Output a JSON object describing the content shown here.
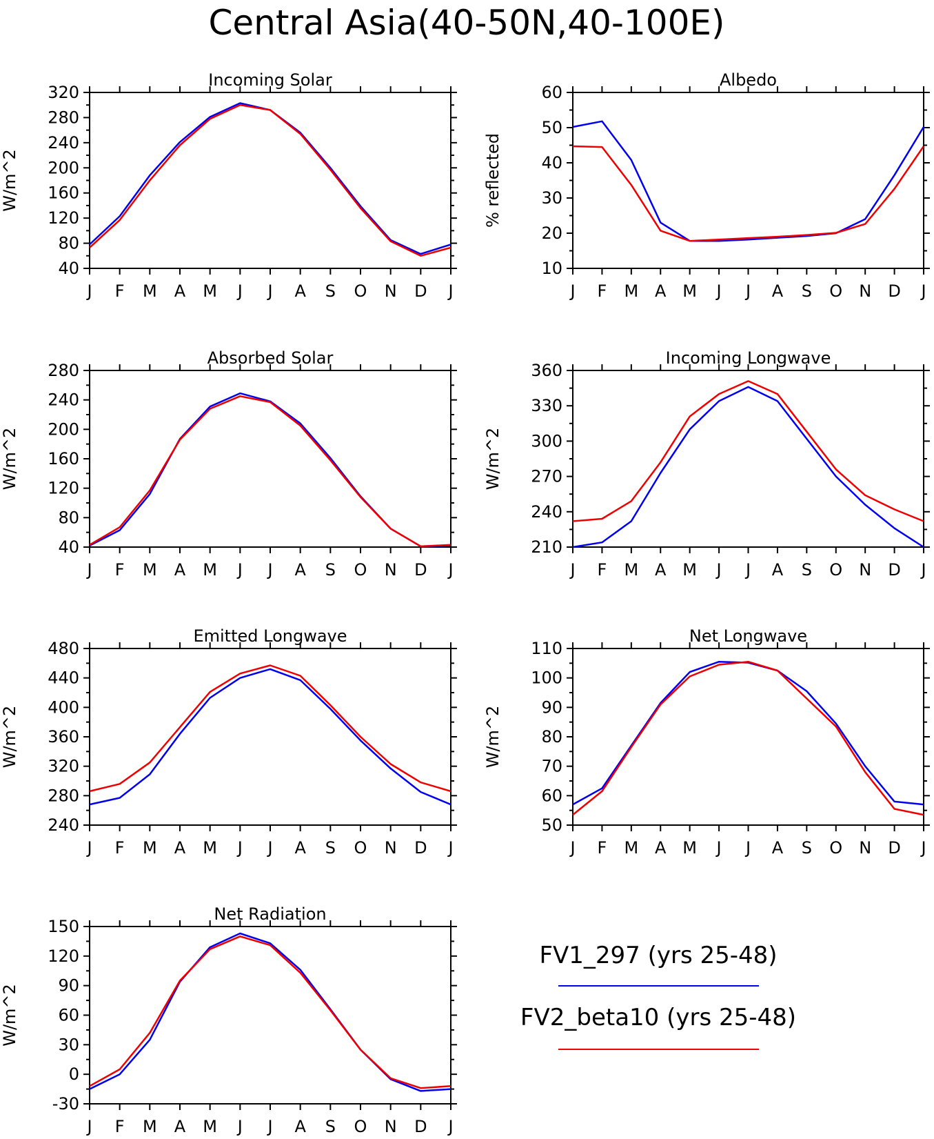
{
  "figure": {
    "title": "Central Asia(40-50N,40-100E)",
    "month_labels": [
      "J",
      "F",
      "M",
      "A",
      "M",
      "J",
      "J",
      "A",
      "S",
      "O",
      "N",
      "D",
      "J"
    ],
    "colors": {
      "FV1_297": "#0000ee",
      "FV2_beta10": "#ee0000"
    }
  },
  "legend": {
    "entries": [
      {
        "label": "FV1_297 (yrs 25-48)",
        "color": "#0000ee"
      },
      {
        "label": "FV2_beta10 (yrs 25-48)",
        "color": "#ee0000"
      }
    ]
  },
  "chart_data": [
    {
      "type": "line",
      "title": "Incoming Solar",
      "ylabel": "W/m^2",
      "ylim": [
        40,
        320
      ],
      "yticks": [
        40,
        80,
        120,
        160,
        200,
        240,
        280,
        320
      ],
      "categories": [
        "J",
        "F",
        "M",
        "A",
        "M",
        "J",
        "J",
        "A",
        "S",
        "O",
        "N",
        "D",
        "J"
      ],
      "series": [
        {
          "name": "FV1_297 (yrs 25-48)",
          "color": "#0000ee",
          "values": [
            78,
            123,
            188,
            241,
            281,
            303,
            292,
            256,
            200,
            139,
            85,
            63,
            78
          ]
        },
        {
          "name": "FV2_beta10 (yrs 25-48)",
          "color": "#ee0000",
          "values": [
            73,
            117,
            180,
            236,
            278,
            300,
            292,
            254,
            197,
            136,
            83,
            60,
            73
          ]
        }
      ]
    },
    {
      "type": "line",
      "title": "Albedo",
      "ylabel": "% reflected",
      "ylim": [
        10,
        60
      ],
      "yticks": [
        10,
        20,
        30,
        40,
        50,
        60
      ],
      "categories": [
        "J",
        "F",
        "M",
        "A",
        "M",
        "J",
        "J",
        "A",
        "S",
        "O",
        "N",
        "D",
        "J"
      ],
      "series": [
        {
          "name": "FV1_297 (yrs 25-48)",
          "color": "#0000ee",
          "values": [
            50.2,
            51.8,
            40.8,
            23.0,
            17.8,
            17.8,
            18.2,
            18.7,
            19.2,
            20.0,
            24.0,
            36.5,
            50.2
          ]
        },
        {
          "name": "FV2_beta10 (yrs 25-48)",
          "color": "#ee0000",
          "values": [
            44.7,
            44.5,
            33.7,
            20.7,
            17.8,
            18.2,
            18.6,
            19.0,
            19.5,
            20.1,
            22.6,
            32.6,
            44.7
          ]
        }
      ]
    },
    {
      "type": "line",
      "title": "Absorbed Solar",
      "ylabel": "W/m^2",
      "ylim": [
        40,
        280
      ],
      "yticks": [
        40,
        80,
        120,
        160,
        200,
        240,
        280
      ],
      "categories": [
        "J",
        "F",
        "M",
        "A",
        "M",
        "J",
        "J",
        "A",
        "S",
        "O",
        "N",
        "D",
        "J"
      ],
      "series": [
        {
          "name": "FV1_297 (yrs 25-48)",
          "color": "#0000ee",
          "values": [
            42,
            63,
            112,
            187,
            231,
            249,
            238,
            208,
            161,
            109,
            65,
            41,
            42
          ]
        },
        {
          "name": "FV2_beta10 (yrs 25-48)",
          "color": "#ee0000",
          "values": [
            43,
            67,
            117,
            186,
            228,
            245,
            237,
            205,
            158,
            108,
            65,
            41,
            43
          ]
        }
      ]
    },
    {
      "type": "line",
      "title": "Incoming Longwave",
      "ylabel": "W/m^2",
      "ylim": [
        210,
        360
      ],
      "yticks": [
        210,
        240,
        270,
        300,
        330,
        360
      ],
      "categories": [
        "J",
        "F",
        "M",
        "A",
        "M",
        "J",
        "J",
        "A",
        "S",
        "O",
        "N",
        "D",
        "J"
      ],
      "series": [
        {
          "name": "FV1_297 (yrs 25-48)",
          "color": "#0000ee",
          "values": [
            210,
            214,
            232,
            273,
            310,
            334,
            346,
            334,
            302,
            270,
            246,
            226,
            210
          ]
        },
        {
          "name": "FV2_beta10 (yrs 25-48)",
          "color": "#ee0000",
          "values": [
            232,
            234,
            249,
            282,
            321,
            340,
            351,
            340,
            308,
            276,
            254,
            242,
            232
          ]
        }
      ]
    },
    {
      "type": "line",
      "title": "Emitted Longwave",
      "ylabel": "W/m^2",
      "ylim": [
        240,
        480
      ],
      "yticks": [
        240,
        280,
        320,
        360,
        400,
        440,
        480
      ],
      "categories": [
        "J",
        "F",
        "M",
        "A",
        "M",
        "J",
        "J",
        "A",
        "S",
        "O",
        "N",
        "D",
        "J"
      ],
      "series": [
        {
          "name": "FV1_297 (yrs 25-48)",
          "color": "#0000ee",
          "values": [
            268,
            277,
            309,
            364,
            413,
            440,
            452,
            437,
            398,
            355,
            317,
            285,
            268
          ]
        },
        {
          "name": "FV2_beta10 (yrs 25-48)",
          "color": "#ee0000",
          "values": [
            286,
            296,
            325,
            373,
            421,
            446,
            457,
            443,
            403,
            360,
            323,
            298,
            286
          ]
        }
      ]
    },
    {
      "type": "line",
      "title": "Net Longwave",
      "ylabel": "W/m^2",
      "ylim": [
        50,
        110
      ],
      "yticks": [
        50,
        60,
        70,
        80,
        90,
        100,
        110
      ],
      "categories": [
        "J",
        "F",
        "M",
        "A",
        "M",
        "J",
        "J",
        "A",
        "S",
        "O",
        "N",
        "D",
        "J"
      ],
      "series": [
        {
          "name": "FV1_297 (yrs 25-48)",
          "color": "#0000ee",
          "values": [
            57,
            62.5,
            77,
            91.5,
            102,
            105.5,
            105.2,
            102.5,
            95.5,
            84.5,
            70,
            58,
            57
          ]
        },
        {
          "name": "FV2_beta10 (yrs 25-48)",
          "color": "#ee0000",
          "values": [
            53.5,
            61.5,
            76.5,
            91,
            100.5,
            104.5,
            105.5,
            102.5,
            93,
            83.5,
            68,
            55.5,
            53.5
          ]
        }
      ]
    },
    {
      "type": "line",
      "title": "Net Radiation",
      "ylabel": "W/m^2",
      "ylim": [
        -30,
        150
      ],
      "yticks": [
        -30,
        0,
        30,
        60,
        90,
        120,
        150
      ],
      "categories": [
        "J",
        "F",
        "M",
        "A",
        "M",
        "J",
        "J",
        "A",
        "S",
        "O",
        "N",
        "D",
        "J"
      ],
      "series": [
        {
          "name": "FV1_297 (yrs 25-48)",
          "color": "#0000ee",
          "values": [
            -15,
            0,
            35,
            94,
            129,
            143,
            133,
            106,
            66,
            25,
            -5,
            -17,
            -15
          ]
        },
        {
          "name": "FV2_beta10 (yrs 25-48)",
          "color": "#ee0000",
          "values": [
            -12,
            5,
            42,
            95,
            127,
            140,
            131,
            103,
            65,
            25,
            -4,
            -14,
            -12
          ]
        }
      ]
    }
  ]
}
